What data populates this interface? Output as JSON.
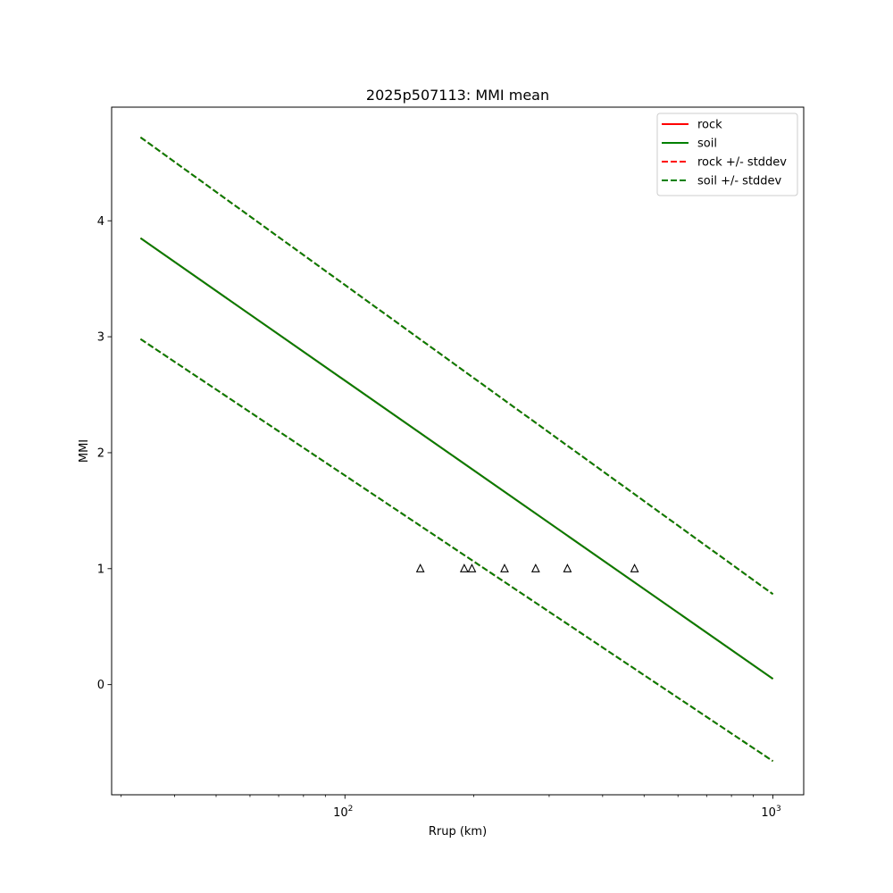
{
  "chart_data": {
    "type": "line",
    "title": "2025p507113: MMI mean",
    "xlabel": "Rrup (km)",
    "ylabel": "MMI",
    "xscale": "log",
    "xlim": [
      28.5,
      1180
    ],
    "ylim": [
      -0.95,
      4.98
    ],
    "grid": false,
    "legend_position": "top-right",
    "x_major_ticks": [
      {
        "value": 100,
        "base": "10",
        "exp": "2"
      },
      {
        "value": 1000,
        "base": "10",
        "exp": "3"
      }
    ],
    "x_minor_ticks": [
      30,
      40,
      50,
      60,
      70,
      80,
      90,
      200,
      300,
      400,
      500,
      600,
      700,
      800,
      900
    ],
    "y_ticks": [
      {
        "value": 0,
        "label": "0"
      },
      {
        "value": 1,
        "label": "1"
      },
      {
        "value": 2,
        "label": "2"
      },
      {
        "value": 3,
        "label": "3"
      },
      {
        "value": 4,
        "label": "4"
      }
    ],
    "series": [
      {
        "name": "rock",
        "color": "#ff0000",
        "style": "solid",
        "x": [
          33.3,
          1000
        ],
        "y": [
          3.85,
          0.05
        ]
      },
      {
        "name": "soil",
        "color": "#008000",
        "style": "solid",
        "x": [
          33.3,
          1000
        ],
        "y": [
          3.85,
          0.05
        ]
      },
      {
        "name": "rock +/- stddev",
        "color": "#ff0000",
        "style": "dashed",
        "x": [
          33.3,
          1000
        ],
        "y": [
          4.72,
          0.78
        ]
      },
      {
        "name": "rock +/- stddev",
        "color": "#ff0000",
        "style": "dashed",
        "x": [
          33.3,
          1000
        ],
        "y": [
          2.98,
          -0.66
        ],
        "legend": false
      },
      {
        "name": "soil +/- stddev",
        "color": "#008000",
        "style": "dashed",
        "x": [
          33.3,
          1000
        ],
        "y": [
          4.72,
          0.78
        ]
      },
      {
        "name": "soil +/- stddev",
        "color": "#008000",
        "style": "dashed",
        "x": [
          33.3,
          1000
        ],
        "y": [
          2.98,
          -0.66
        ],
        "legend": false
      }
    ],
    "observations": {
      "marker": "triangle",
      "x": [
        150,
        190,
        198,
        236,
        279,
        331,
        475
      ],
      "y": [
        1,
        1,
        1,
        1,
        1,
        1,
        1
      ]
    }
  }
}
